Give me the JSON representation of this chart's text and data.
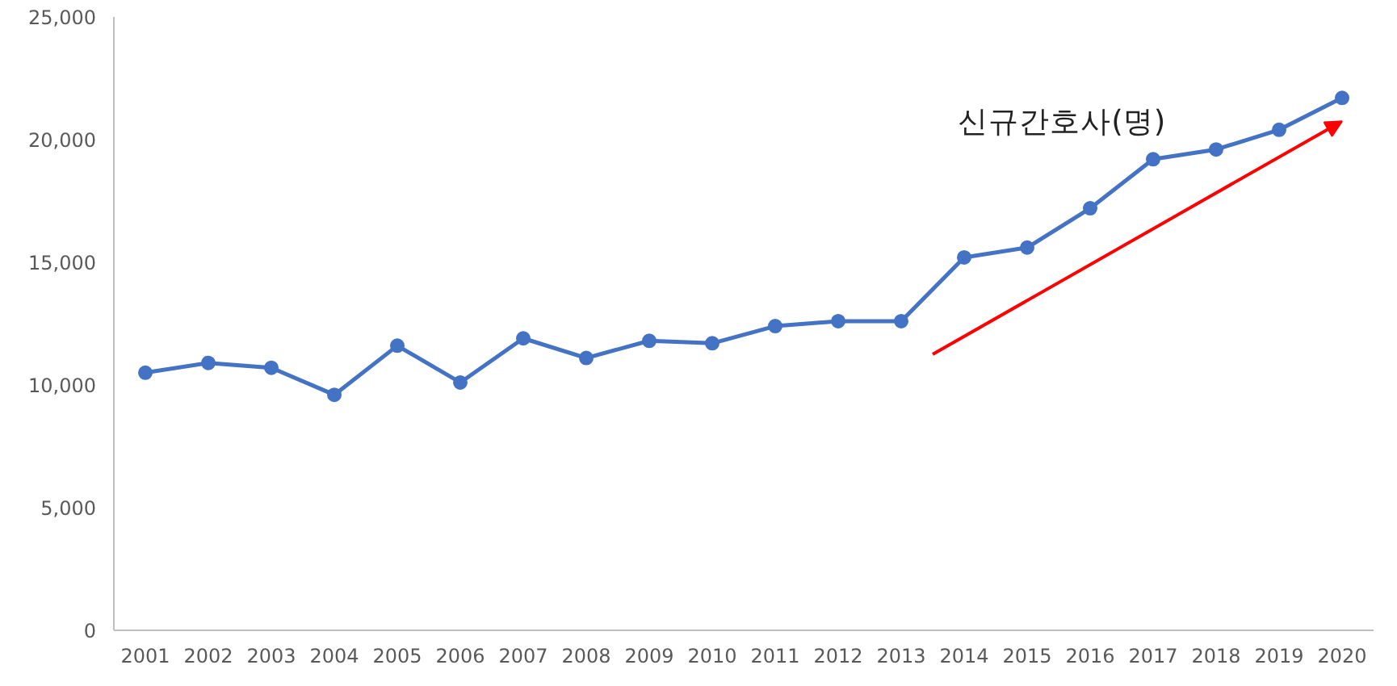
{
  "chart_data": {
    "type": "line",
    "categories": [
      "2001",
      "2002",
      "2003",
      "2004",
      "2005",
      "2006",
      "2007",
      "2008",
      "2009",
      "2010",
      "2011",
      "2012",
      "2013",
      "2014",
      "2015",
      "2016",
      "2017",
      "2018",
      "2019",
      "2020"
    ],
    "series": [
      {
        "color": "#4472c4",
        "values": [
          10500,
          10900,
          10700,
          9600,
          11600,
          10100,
          11900,
          11100,
          11800,
          11700,
          12400,
          12600,
          12600,
          15200,
          15600,
          17200,
          19200,
          19600,
          20400,
          21700
        ]
      }
    ],
    "ylim": [
      0,
      25000
    ],
    "yticks": [
      {
        "value": 0,
        "label": "0"
      },
      {
        "value": 5000,
        "label": "5,000"
      },
      {
        "value": 10000,
        "label": "10,000"
      },
      {
        "value": 15000,
        "label": "15,000"
      },
      {
        "value": 20000,
        "label": "20,000"
      },
      {
        "value": 25000,
        "label": "25,000"
      }
    ],
    "annotations": [
      "신규간호사(명)"
    ],
    "marker": "circle",
    "line_style": "solid",
    "grid": false
  }
}
